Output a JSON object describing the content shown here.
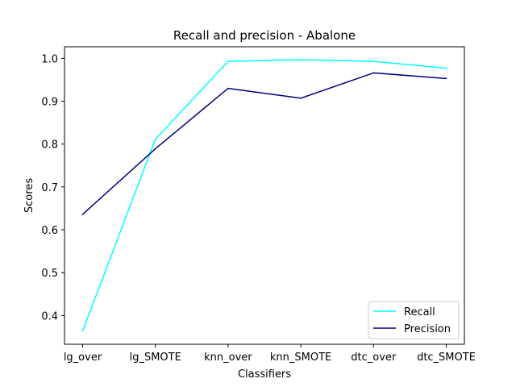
{
  "chart_data": {
    "type": "line",
    "title": "Recall and precision - Abalone",
    "xlabel": "Classifiers",
    "ylabel": "Scores",
    "categories": [
      "lg_over",
      "lg_SMOTE",
      "knn_over",
      "knn_SMOTE",
      "dtc_over",
      "dtc_SMOTE"
    ],
    "yticks": [
      0.4,
      0.5,
      0.6,
      0.7,
      0.8,
      0.9,
      1.0
    ],
    "ytick_labels": [
      "0.4",
      "0.5",
      "0.6",
      "0.7",
      "0.8",
      "0.9",
      "1.0"
    ],
    "ylim": [
      0.333,
      1.027
    ],
    "grid": false,
    "legend_position": "lower-right",
    "series": [
      {
        "name": "Recall",
        "color": "#00ffff",
        "values": [
          0.364,
          0.811,
          0.993,
          0.997,
          0.993,
          0.977
        ]
      },
      {
        "name": "Precision",
        "color": "#000080",
        "values": [
          0.636,
          0.789,
          0.93,
          0.907,
          0.966,
          0.953
        ]
      }
    ]
  }
}
